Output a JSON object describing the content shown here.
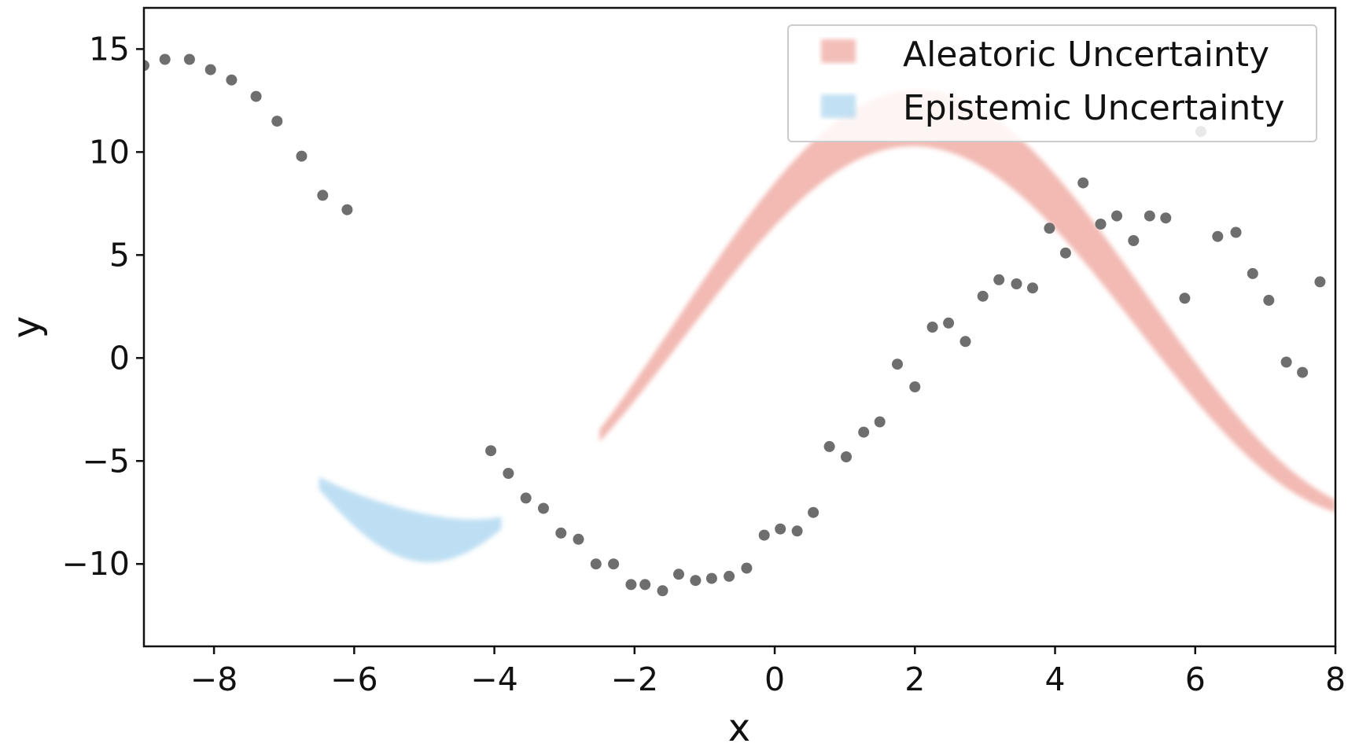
{
  "chart_data": {
    "type": "scatter",
    "title": "",
    "xlabel": "x",
    "ylabel": "y",
    "xlim": [
      -9,
      8
    ],
    "ylim": [
      -14,
      17
    ],
    "xticks": [
      -8,
      -6,
      -4,
      -2,
      0,
      2,
      4,
      6,
      8
    ],
    "yticks": [
      -10,
      -5,
      0,
      5,
      10,
      15
    ],
    "xtick_labels": [
      "−8",
      "−6",
      "−4",
      "−2",
      "0",
      "2",
      "4",
      "6",
      "8"
    ],
    "ytick_labels": [
      "−10",
      "−5",
      "0",
      "5",
      "10",
      "15"
    ],
    "grid": false,
    "legend_position": "top-right",
    "series": [
      {
        "name": "Epistemic Uncertainty",
        "kind": "band",
        "color": "#a8d4ef",
        "x_range": [
          -6.5,
          -3.9
        ],
        "half_width_at_ends": 0.3,
        "half_width_at_center": 1.2
      },
      {
        "name": "Aleatoric Uncertainty",
        "kind": "band",
        "color": "#eea39a",
        "x_range": [
          -2.5,
          8
        ],
        "half_width_at_ends": 0.3,
        "half_width_at_center": 1.4
      },
      {
        "kind": "scatter",
        "color": "#6e6e6e",
        "x": [
          -9.0,
          -8.7,
          -8.35,
          -8.05,
          -7.75,
          -7.4,
          -7.1,
          -6.75,
          -6.45,
          -6.1,
          -4.05,
          -3.8,
          -3.55,
          -3.3,
          -3.05,
          -2.8,
          -2.55,
          -2.3,
          -2.05,
          -1.85,
          -1.6,
          -1.37,
          -1.13,
          -0.9,
          -0.65,
          -0.4,
          -0.15,
          0.08,
          0.32,
          0.55,
          0.78,
          1.02,
          1.27,
          1.5,
          1.75,
          2.0,
          2.25,
          2.48,
          2.72,
          2.97,
          3.2,
          3.45,
          3.68,
          3.92,
          4.15,
          4.4,
          4.65,
          4.88,
          5.12,
          5.35,
          5.58,
          5.85,
          6.08,
          6.32,
          6.58,
          6.82,
          7.05,
          7.3,
          7.53,
          7.78
        ],
        "values": [
          14.2,
          14.5,
          14.5,
          14.0,
          13.5,
          12.7,
          11.5,
          9.8,
          7.9,
          7.2,
          -4.5,
          -5.6,
          -6.8,
          -7.3,
          -8.5,
          -8.8,
          -10.0,
          -10.0,
          -11.0,
          -11.0,
          -11.3,
          -10.5,
          -10.8,
          -10.7,
          -10.6,
          -10.2,
          -8.6,
          -8.3,
          -8.4,
          -7.5,
          -4.3,
          -4.8,
          -3.6,
          -3.1,
          -0.3,
          -1.4,
          1.5,
          1.7,
          0.8,
          3.0,
          3.8,
          3.6,
          3.4,
          6.3,
          5.1,
          8.5,
          6.5,
          6.9,
          5.7,
          6.9,
          6.8,
          2.9,
          11.0,
          5.9,
          6.1,
          4.1,
          2.8,
          -0.2,
          -0.7,
          3.7
        ]
      }
    ]
  }
}
